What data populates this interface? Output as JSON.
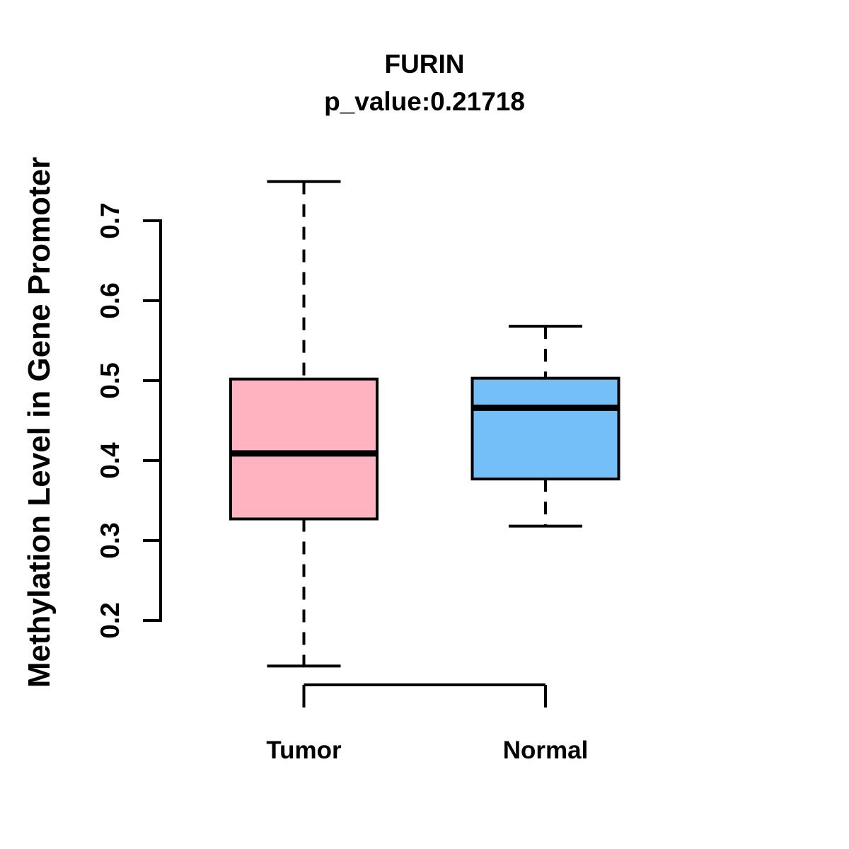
{
  "page": {
    "background_color": "#ffffff",
    "text_color": "#000000"
  },
  "chart_data": {
    "type": "boxplot",
    "title": "FURIN",
    "subtitle": "p_value:0.21718",
    "ylabel": "Methylation Level in Gene Promoter",
    "xlabel": "",
    "ylim": [
      0.2,
      0.7
    ],
    "yticks": [
      "0.2",
      "0.3",
      "0.4",
      "0.5",
      "0.6",
      "0.7"
    ],
    "ytick_values": [
      0.2,
      0.3,
      0.4,
      0.5,
      0.6,
      0.7
    ],
    "grid": false,
    "legend_position": "none",
    "categories": [
      "Tumor",
      "Normal"
    ],
    "series": [
      {
        "name": "Tumor",
        "fill_color": "#FFB3C1",
        "stroke_color": "#000000",
        "lower_whisker": 0.143,
        "q1": 0.327,
        "median": 0.409,
        "q3": 0.502,
        "upper_whisker": 0.749,
        "outliers": []
      },
      {
        "name": "Normal",
        "fill_color": "#74BFF7",
        "stroke_color": "#000000",
        "lower_whisker": 0.318,
        "q1": 0.377,
        "median": 0.466,
        "q3": 0.503,
        "upper_whisker": 0.568,
        "outliers": []
      }
    ]
  }
}
